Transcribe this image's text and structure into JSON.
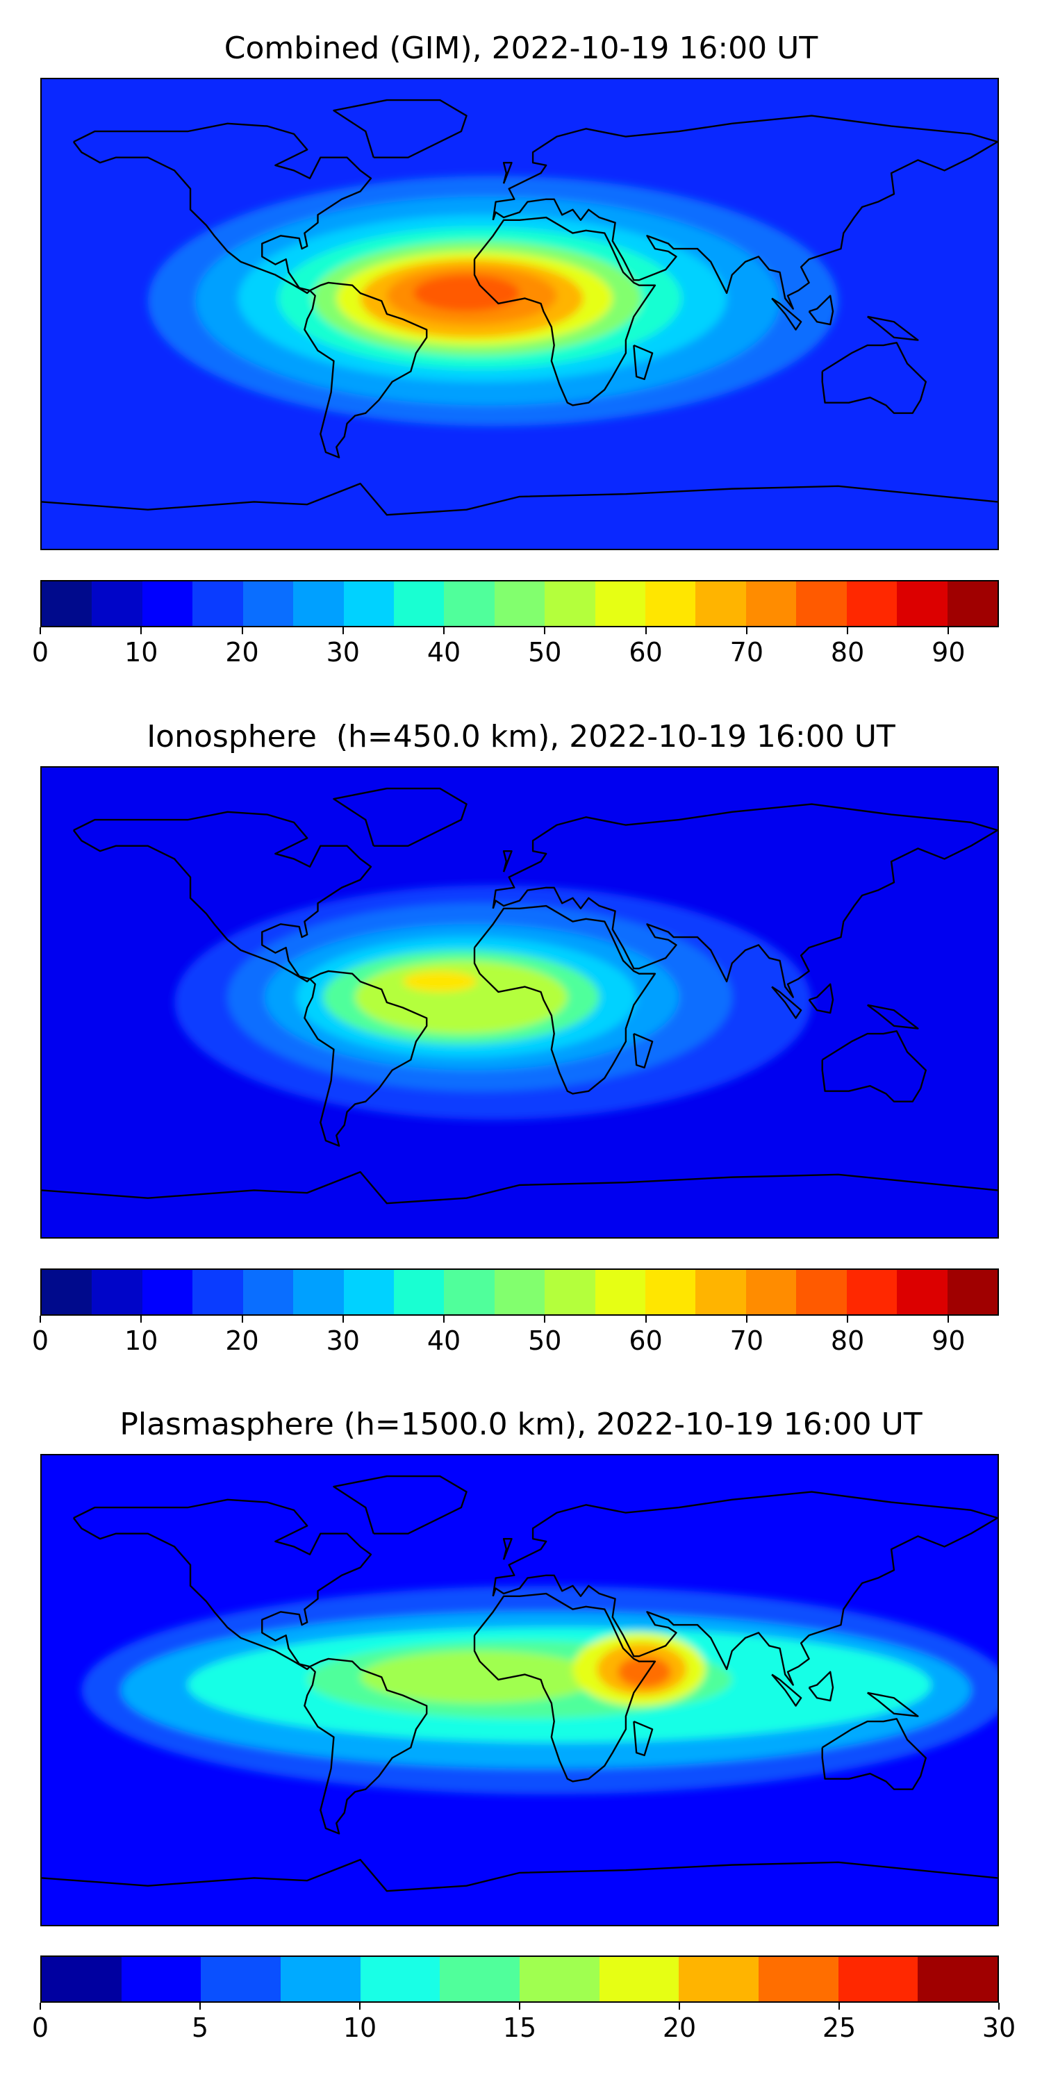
{
  "panels": [
    {
      "title": "Combined (GIM), 2022-10-19 16:00 UT",
      "colorbar": {
        "colors": [
          "#000a8c",
          "#0005c8",
          "#0000ff",
          "#0a3cff",
          "#0a6eff",
          "#00a0ff",
          "#00d2ff",
          "#19ffd2",
          "#50ff9b",
          "#82ff6e",
          "#b4ff3c",
          "#e6ff14",
          "#ffe600",
          "#ffb400",
          "#ff8c00",
          "#ff5a00",
          "#ff2800",
          "#dc0000",
          "#a00000"
        ],
        "ticks": [
          "0",
          "10",
          "20",
          "30",
          "40",
          "50",
          "60",
          "70",
          "80",
          "90"
        ],
        "tick_values": [
          0,
          10,
          20,
          30,
          40,
          50,
          60,
          70,
          80,
          90
        ],
        "range": [
          0,
          95
        ]
      },
      "field": {
        "background": "#0a28ff",
        "blobs": [
          {
            "lon": -10,
            "lat": 5,
            "rx": 130,
            "ry": 48,
            "color": "#0a6eff"
          },
          {
            "lon": -12,
            "lat": 5,
            "rx": 110,
            "ry": 40,
            "color": "#00a0ff"
          },
          {
            "lon": -14,
            "lat": 6,
            "rx": 92,
            "ry": 32,
            "color": "#00d2ff"
          },
          {
            "lon": -15,
            "lat": 6,
            "rx": 76,
            "ry": 27,
            "color": "#19ffd2"
          },
          {
            "lon": -16,
            "lat": 6,
            "rx": 62,
            "ry": 22,
            "color": "#82ff6e"
          },
          {
            "lon": -17,
            "lat": 6,
            "rx": 52,
            "ry": 18,
            "color": "#e6ff14"
          },
          {
            "lon": -18,
            "lat": 6,
            "rx": 42,
            "ry": 15,
            "color": "#ffb400"
          },
          {
            "lon": -18,
            "lat": 7,
            "rx": 32,
            "ry": 11,
            "color": "#ff8c00"
          },
          {
            "lon": -20,
            "lat": 8,
            "rx": 20,
            "ry": 7,
            "color": "#ff5a00"
          }
        ]
      }
    },
    {
      "title": "Ionosphere  (h=450.0 km), 2022-10-19 16:00 UT",
      "colorbar": {
        "colors": [
          "#000a8c",
          "#0005c8",
          "#0000ff",
          "#0a3cff",
          "#0a6eff",
          "#00a0ff",
          "#00d2ff",
          "#19ffd2",
          "#50ff9b",
          "#82ff6e",
          "#b4ff3c",
          "#e6ff14",
          "#ffe600",
          "#ffb400",
          "#ff8c00",
          "#ff5a00",
          "#ff2800",
          "#dc0000",
          "#a00000"
        ],
        "ticks": [
          "0",
          "10",
          "20",
          "30",
          "40",
          "50",
          "60",
          "70",
          "80",
          "90"
        ],
        "tick_values": [
          0,
          10,
          20,
          30,
          40,
          50,
          60,
          70,
          80,
          90
        ],
        "range": [
          0,
          95
        ]
      },
      "field": {
        "background": "#0000f0",
        "blobs": [
          {
            "lon": -10,
            "lat": 0,
            "rx": 120,
            "ry": 45,
            "color": "#0a3cff"
          },
          {
            "lon": -15,
            "lat": 2,
            "rx": 95,
            "ry": 36,
            "color": "#0a6eff"
          },
          {
            "lon": -18,
            "lat": 2,
            "rx": 78,
            "ry": 28,
            "color": "#00a0ff"
          },
          {
            "lon": -20,
            "lat": 2,
            "rx": 64,
            "ry": 23,
            "color": "#00d2ff"
          },
          {
            "lon": -22,
            "lat": 2,
            "rx": 52,
            "ry": 18,
            "color": "#50ff9b"
          },
          {
            "lon": -22,
            "lat": 2,
            "rx": 40,
            "ry": 14,
            "color": "#b4ff3c"
          },
          {
            "lon": -30,
            "lat": 8,
            "rx": 14,
            "ry": 4,
            "color": "#ffe600"
          }
        ]
      }
    },
    {
      "title": "Plasmasphere (h=1500.0 km), 2022-10-19 16:00 UT",
      "colorbar": {
        "colors": [
          "#0000a0",
          "#0000ff",
          "#0a50ff",
          "#00aaff",
          "#19ffe6",
          "#50ff9b",
          "#a0ff50",
          "#e6ff14",
          "#ffb400",
          "#ff6e00",
          "#ff2800",
          "#a00000"
        ],
        "ticks": [
          "0",
          "5",
          "10",
          "15",
          "20",
          "25",
          "30"
        ],
        "tick_values": [
          0,
          5,
          10,
          15,
          20,
          25,
          30
        ],
        "range": [
          0,
          30
        ]
      },
      "field": {
        "background": "#0000ff",
        "blobs": [
          {
            "lon": 10,
            "lat": 0,
            "rx": 175,
            "ry": 40,
            "color": "#0a50ff"
          },
          {
            "lon": 10,
            "lat": 0,
            "rx": 160,
            "ry": 30,
            "color": "#00aaff"
          },
          {
            "lon": 15,
            "lat": 2,
            "rx": 140,
            "ry": 22,
            "color": "#19ffe6"
          },
          {
            "lon": 0,
            "lat": 4,
            "rx": 80,
            "ry": 15,
            "color": "#50ff9b"
          },
          {
            "lon": -15,
            "lat": 5,
            "rx": 45,
            "ry": 10,
            "color": "#a0ff50"
          },
          {
            "lon": 45,
            "lat": 8,
            "rx": 25,
            "ry": 14,
            "color": "#e6ff14"
          },
          {
            "lon": 46,
            "lat": 8,
            "rx": 17,
            "ry": 10,
            "color": "#ffb400"
          },
          {
            "lon": 47,
            "lat": 7,
            "rx": 10,
            "ry": 6,
            "color": "#ff6e00"
          }
        ]
      }
    }
  ]
}
